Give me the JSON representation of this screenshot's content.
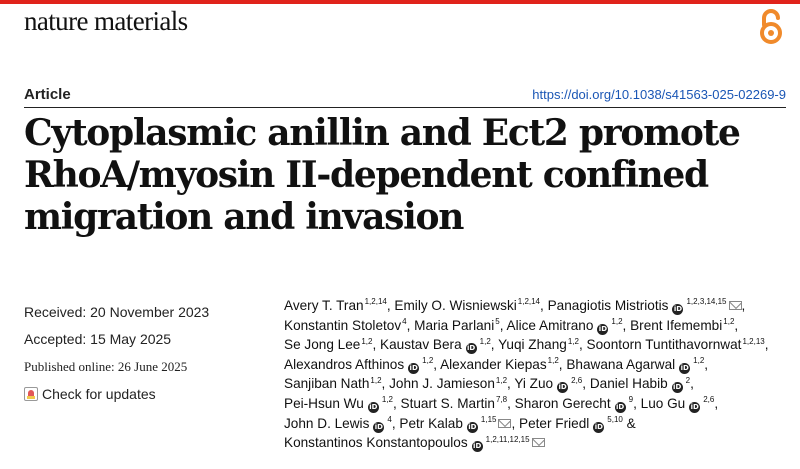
{
  "header": {
    "journal_name": "nature materials",
    "open_access_icon": "open-access-lock-icon",
    "accent_color": "#e0231b"
  },
  "article": {
    "type_label": "Article",
    "doi": "https://doi.org/10.1038/s41563-025-02269-9",
    "title": "Cytoplasmic anillin and Ect2 promote RhoA/myosin II-dependent confined migration and invasion"
  },
  "dates": {
    "received": "Received: 20 November 2023",
    "accepted": "Accepted: 15 May 2025",
    "published": "Published online: 26 June 2025"
  },
  "check_updates": {
    "label": "Check for updates"
  },
  "authors": [
    {
      "name": "Avery T. Tran",
      "aff": "1,2,14",
      "orcid": false,
      "mail": false,
      "sep": ","
    },
    {
      "name": "Emily O. Wisniewski",
      "aff": "1,2,14",
      "orcid": false,
      "mail": false,
      "sep": ","
    },
    {
      "name": "Panagiotis Mistriotis",
      "aff": "1,2,3,14,15",
      "orcid": true,
      "mail": true,
      "sep": ","
    },
    {
      "name": "Konstantin Stoletov",
      "aff": "4",
      "orcid": false,
      "mail": false,
      "sep": ","
    },
    {
      "name": "Maria Parlani",
      "aff": "5",
      "orcid": false,
      "mail": false,
      "sep": ","
    },
    {
      "name": "Alice Amitrano",
      "aff": "1,2",
      "orcid": true,
      "mail": false,
      "sep": ","
    },
    {
      "name": "Brent Ifemembi",
      "aff": "1,2",
      "orcid": false,
      "mail": false,
      "sep": ","
    },
    {
      "name": "Se Jong Lee",
      "aff": "1,2",
      "orcid": false,
      "mail": false,
      "sep": ","
    },
    {
      "name": "Kaustav Bera",
      "aff": "1,2",
      "orcid": true,
      "mail": false,
      "sep": ","
    },
    {
      "name": "Yuqi Zhang",
      "aff": "1,2",
      "orcid": false,
      "mail": false,
      "sep": ","
    },
    {
      "name": "Soontorn Tuntithavornwat",
      "aff": "1,2,13",
      "orcid": false,
      "mail": false,
      "sep": ","
    },
    {
      "name": "Alexandros Afthinos",
      "aff": "1,2",
      "orcid": true,
      "mail": false,
      "sep": ","
    },
    {
      "name": "Alexander Kiepas",
      "aff": "1,2",
      "orcid": false,
      "mail": false,
      "sep": ","
    },
    {
      "name": "Bhawana Agarwal",
      "aff": "1,2",
      "orcid": true,
      "mail": false,
      "sep": ","
    },
    {
      "name": "Sanjiban Nath",
      "aff": "1,2",
      "orcid": false,
      "mail": false,
      "sep": ","
    },
    {
      "name": "John J. Jamieson",
      "aff": "1,2",
      "orcid": false,
      "mail": false,
      "sep": ","
    },
    {
      "name": "Yi Zuo",
      "aff": "2,6",
      "orcid": true,
      "mail": false,
      "sep": ","
    },
    {
      "name": "Daniel Habib",
      "aff": "2",
      "orcid": true,
      "mail": false,
      "sep": ","
    },
    {
      "name": "Pei-Hsun Wu",
      "aff": "1,2",
      "orcid": true,
      "mail": false,
      "sep": ","
    },
    {
      "name": "Stuart S. Martin",
      "aff": "7,8",
      "orcid": false,
      "mail": false,
      "sep": ","
    },
    {
      "name": "Sharon Gerecht",
      "aff": "9",
      "orcid": true,
      "mail": false,
      "sep": ","
    },
    {
      "name": "Luo Gu",
      "aff": "2,6",
      "orcid": true,
      "mail": false,
      "sep": ","
    },
    {
      "name": "John D. Lewis",
      "aff": "4",
      "orcid": true,
      "mail": false,
      "sep": ","
    },
    {
      "name": "Petr Kalab",
      "aff": "1,15",
      "orcid": true,
      "mail": true,
      "sep": ","
    },
    {
      "name": "Peter Friedl",
      "aff": "5,10",
      "orcid": true,
      "mail": false,
      "sep": " &"
    },
    {
      "name": "Konstantinos Konstantopoulos",
      "aff": "1,2,11,12,15",
      "orcid": true,
      "mail": true,
      "sep": ""
    }
  ]
}
